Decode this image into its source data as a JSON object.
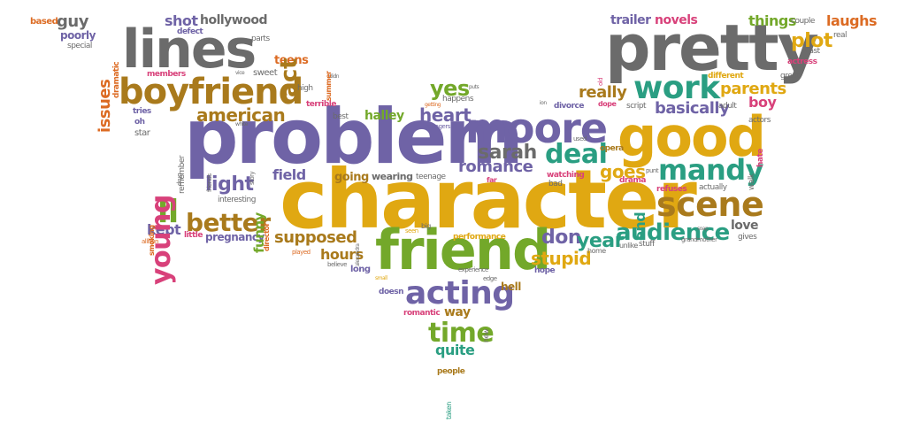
{
  "palette": {
    "purple": "#6f63a6",
    "gold": "#e0a812",
    "green": "#73a82a",
    "brown": "#a97a1c",
    "gray": "#6b6b6b",
    "pink": "#d8417a",
    "teal": "#2a9e82",
    "orange": "#dc6b23"
  },
  "words": [
    {
      "text": "problem"
    },
    {
      "text": "character"
    },
    {
      "text": "pretty"
    },
    {
      "text": "friend"
    },
    {
      "text": "lines"
    },
    {
      "text": "good"
    },
    {
      "text": "moore"
    },
    {
      "text": "boyfriend"
    },
    {
      "text": "work"
    },
    {
      "text": "scene"
    },
    {
      "text": "mandy"
    },
    {
      "text": "acting"
    },
    {
      "text": "audience"
    },
    {
      "text": "deal"
    },
    {
      "text": "better"
    },
    {
      "text": "sarah"
    },
    {
      "text": "time"
    },
    {
      "text": "american"
    },
    {
      "text": "plot"
    },
    {
      "text": "young"
    },
    {
      "text": "parents"
    },
    {
      "text": "light"
    },
    {
      "text": "romance"
    },
    {
      "text": "heart"
    },
    {
      "text": "stupid"
    },
    {
      "text": "yes"
    },
    {
      "text": "don"
    },
    {
      "text": "year"
    },
    {
      "text": "goes"
    },
    {
      "text": "supposed"
    },
    {
      "text": "ll"
    },
    {
      "text": "act"
    },
    {
      "text": "basically"
    },
    {
      "text": "really"
    },
    {
      "text": "issues"
    },
    {
      "text": "hours"
    },
    {
      "text": "things"
    },
    {
      "text": "quite"
    },
    {
      "text": "field"
    },
    {
      "text": "trailer"
    },
    {
      "text": "novels"
    },
    {
      "text": "laughs"
    },
    {
      "text": "guy"
    },
    {
      "text": "shot"
    },
    {
      "text": "hollywood"
    },
    {
      "text": "halley"
    },
    {
      "text": "kept"
    },
    {
      "text": "pregnancy"
    },
    {
      "text": "way"
    },
    {
      "text": "going"
    },
    {
      "text": "wearing"
    },
    {
      "text": "teens"
    },
    {
      "text": "boy"
    },
    {
      "text": "love"
    },
    {
      "text": "end"
    },
    {
      "text": "funny"
    },
    {
      "text": "hell"
    },
    {
      "text": "poorly"
    },
    {
      "text": "special"
    },
    {
      "text": "based"
    },
    {
      "text": "defect"
    },
    {
      "text": "parts"
    },
    {
      "text": "dramatic"
    },
    {
      "text": "sweet"
    },
    {
      "text": "members"
    },
    {
      "text": "high"
    },
    {
      "text": "tries"
    },
    {
      "text": "terrible"
    },
    {
      "text": "best"
    },
    {
      "text": "star"
    },
    {
      "text": "oh"
    },
    {
      "text": "remember"
    },
    {
      "text": "smoking"
    },
    {
      "text": "interesting"
    },
    {
      "text": "director"
    },
    {
      "text": "little"
    },
    {
      "text": "allison"
    },
    {
      "text": "played"
    },
    {
      "text": "believe"
    },
    {
      "text": "long"
    },
    {
      "text": "doesn"
    },
    {
      "text": "romantic"
    },
    {
      "text": "new"
    },
    {
      "text": "people"
    },
    {
      "text": "taken"
    },
    {
      "text": "teenage"
    },
    {
      "text": "big"
    },
    {
      "text": "seen"
    },
    {
      "text": "performance"
    },
    {
      "text": "experience"
    },
    {
      "text": "edge"
    },
    {
      "text": "hope"
    },
    {
      "text": "home"
    },
    {
      "text": "unlike"
    },
    {
      "text": "stuff"
    },
    {
      "text": "watching"
    },
    {
      "text": "bad"
    },
    {
      "text": "far"
    },
    {
      "text": "drama"
    },
    {
      "text": "refuses"
    },
    {
      "text": "actually"
    },
    {
      "text": "gives"
    },
    {
      "text": "walk"
    },
    {
      "text": "hate"
    },
    {
      "text": "actors"
    },
    {
      "text": "adult"
    },
    {
      "text": "script"
    },
    {
      "text": "dope"
    },
    {
      "text": "divorce"
    },
    {
      "text": "happens"
    },
    {
      "text": "puts"
    },
    {
      "text": "getting"
    },
    {
      "text": "teenagers"
    },
    {
      "text": "different"
    },
    {
      "text": "great"
    },
    {
      "text": "actress"
    },
    {
      "text": "cast"
    },
    {
      "text": "real"
    },
    {
      "text": "couple"
    },
    {
      "text": "opera"
    },
    {
      "text": "used"
    },
    {
      "text": "punt"
    },
    {
      "text": "soap"
    },
    {
      "text": "grandmother"
    },
    {
      "text": "friends"
    },
    {
      "text": "drug"
    },
    {
      "text": "story"
    },
    {
      "text": "white"
    },
    {
      "text": "alexandra"
    },
    {
      "text": "small"
    },
    {
      "text": "summer"
    },
    {
      "text": "old"
    },
    {
      "text": "ion"
    },
    {
      "text": "didn"
    },
    {
      "text": "vice"
    }
  ]
}
